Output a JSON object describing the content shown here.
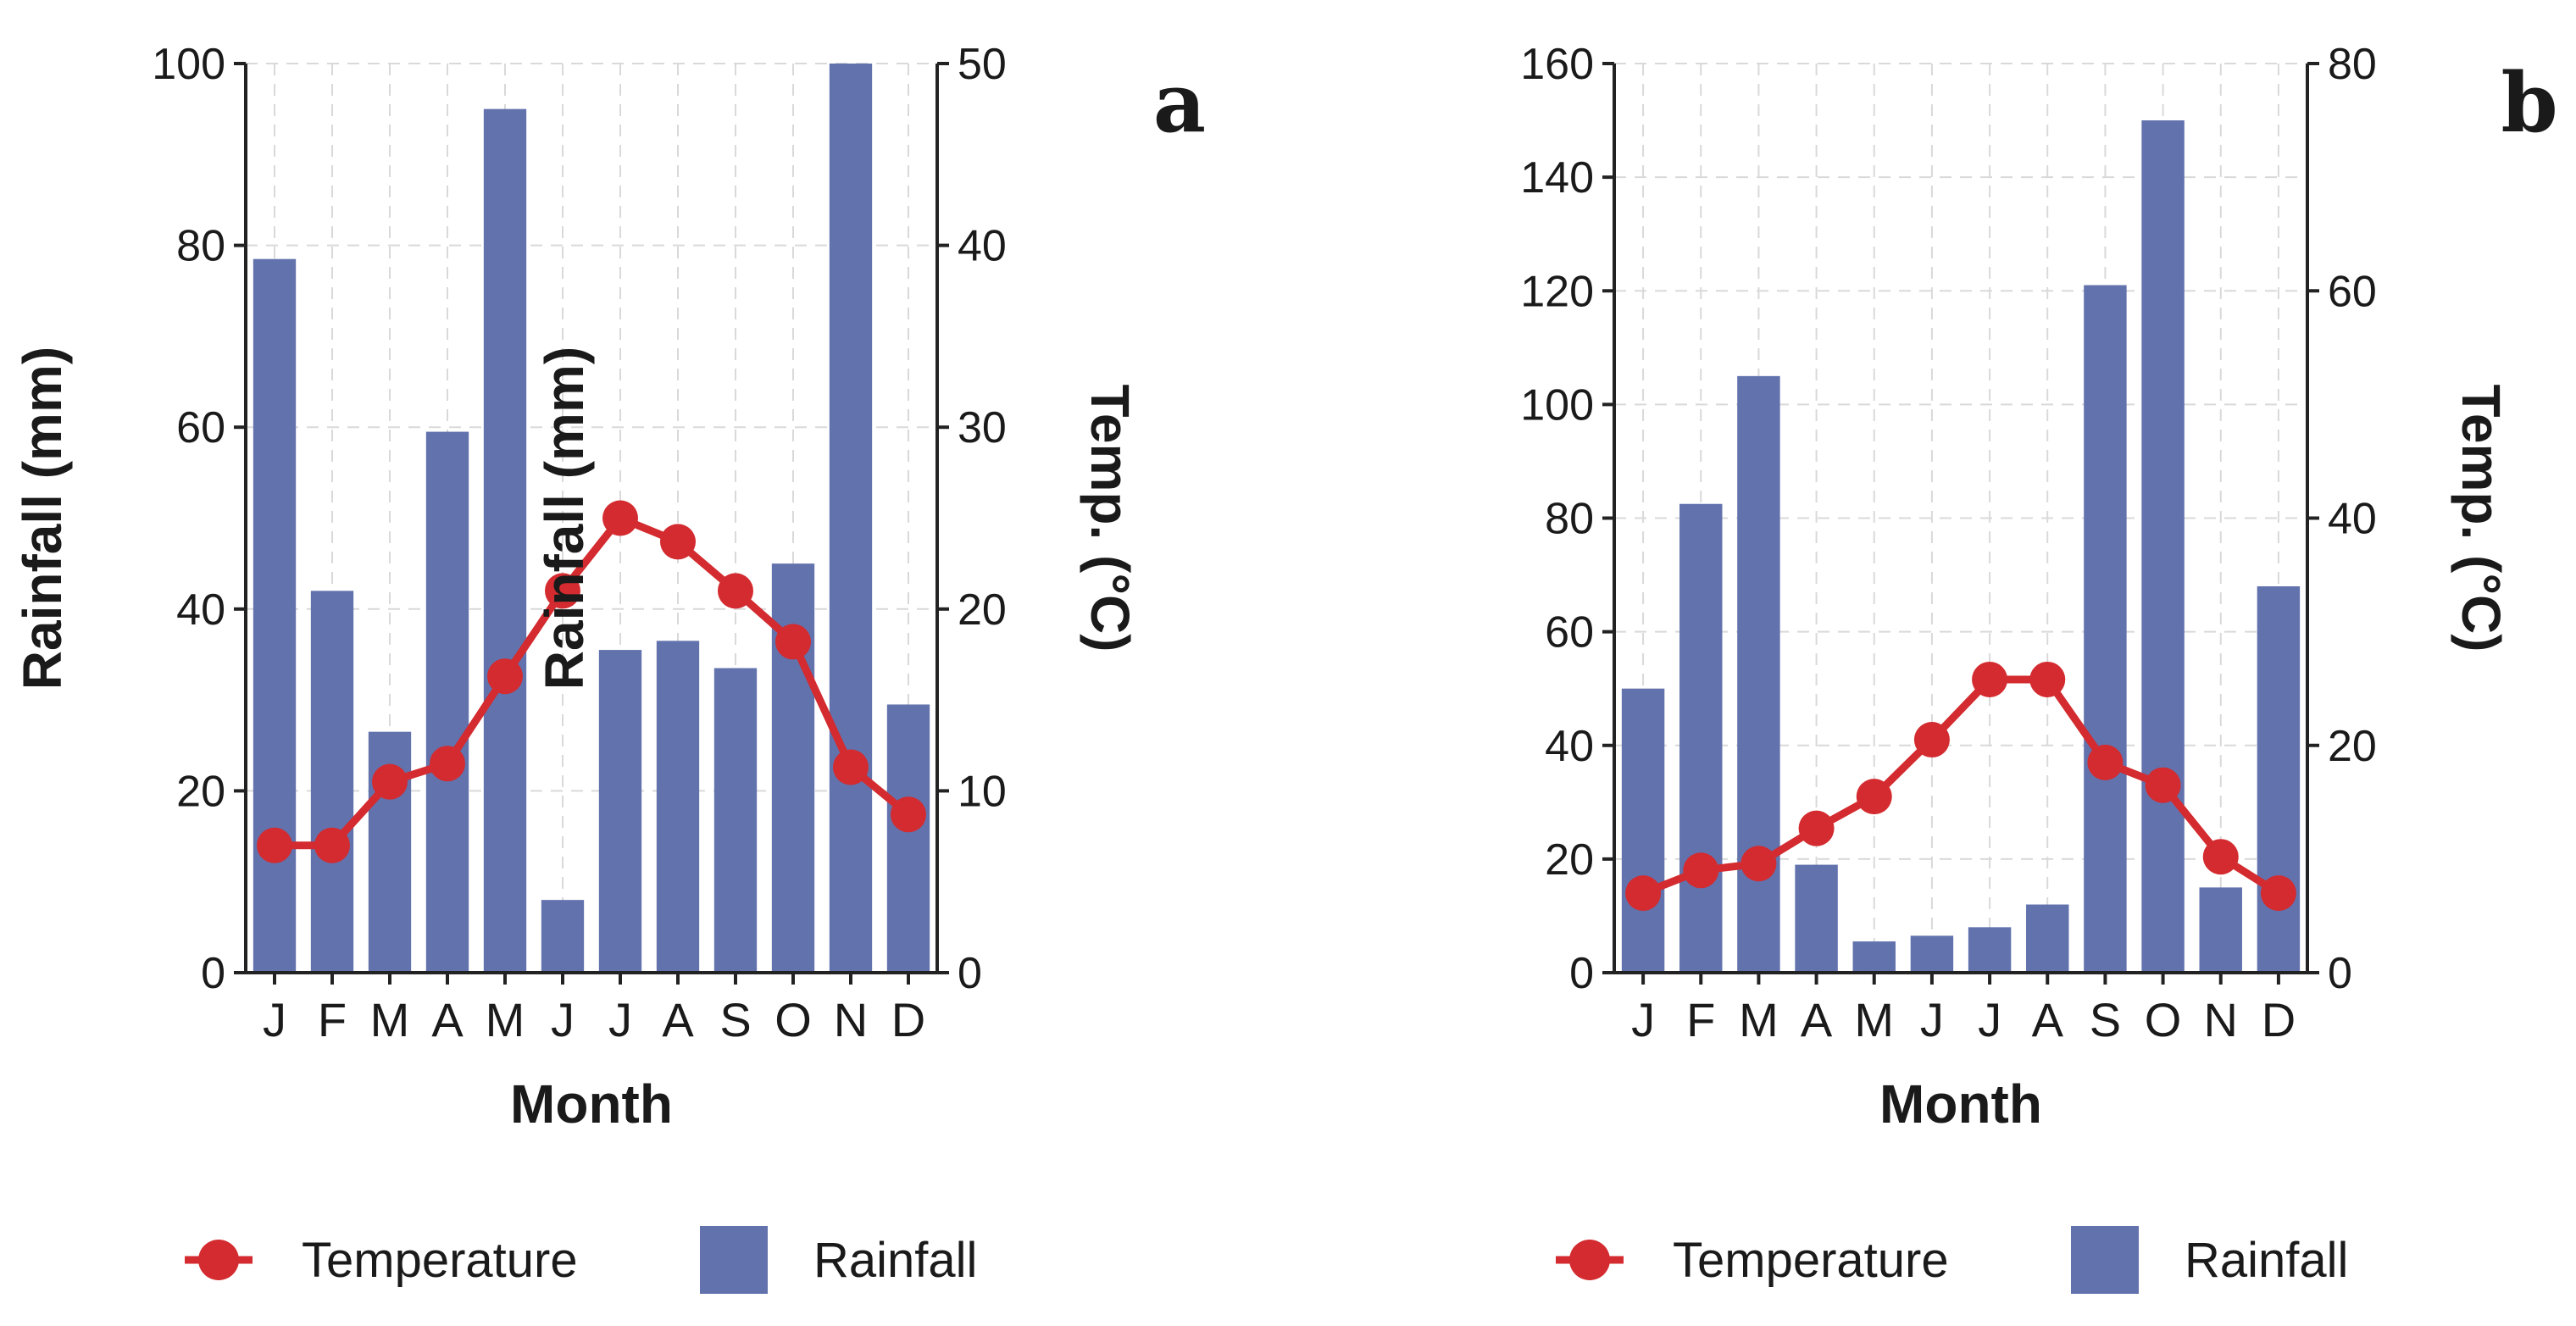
{
  "figure": {
    "panels": [
      "a",
      "b"
    ]
  },
  "colors": {
    "bar": "#6272ad",
    "line": "#d32b2f",
    "grid": "#d9d9d9",
    "axis": "#222222"
  },
  "chart_data": [
    {
      "type": "bar+line",
      "panel_label": "a",
      "categories": [
        "J",
        "F",
        "M",
        "A",
        "M",
        "J",
        "J",
        "A",
        "S",
        "O",
        "N",
        "D"
      ],
      "xlabel": "Month",
      "ylabel": "Rainfall (mm)",
      "y2label": "Temp. (°C)",
      "ylim": [
        0,
        100
      ],
      "y2lim": [
        0,
        50
      ],
      "yticks": [
        0,
        20,
        40,
        60,
        80,
        100
      ],
      "y2ticks": [
        0,
        10,
        20,
        30,
        40,
        50
      ],
      "grid": true,
      "series": [
        {
          "name": "Rainfall",
          "kind": "bar",
          "axis": "left",
          "values": [
            78.5,
            42,
            26.5,
            59.5,
            95,
            8,
            35.5,
            36.5,
            33.5,
            45,
            100,
            29.5
          ]
        },
        {
          "name": "Temperature",
          "kind": "line",
          "axis": "right",
          "values": [
            7,
            7,
            10.5,
            11.5,
            16.3,
            21,
            25,
            23.7,
            21,
            18.2,
            11.3,
            8.7
          ]
        }
      ],
      "legend": {
        "position": "bottom",
        "entries": [
          "Temperature",
          "Rainfall"
        ]
      }
    },
    {
      "type": "bar+line",
      "panel_label": "b",
      "categories": [
        "J",
        "F",
        "M",
        "A",
        "M",
        "J",
        "J",
        "A",
        "S",
        "O",
        "N",
        "D"
      ],
      "xlabel": "Month",
      "ylabel": "Rainfall (mm)",
      "y2label": "Temp. (°C)",
      "ylim": [
        0,
        160
      ],
      "y2lim": [
        0,
        80
      ],
      "yticks": [
        0,
        20,
        40,
        60,
        80,
        100,
        120,
        140,
        160
      ],
      "y2ticks": [
        0,
        20,
        40,
        60,
        80
      ],
      "grid": true,
      "series": [
        {
          "name": "Rainfall",
          "kind": "bar",
          "axis": "left",
          "values": [
            50,
            82.5,
            105,
            19,
            5.5,
            6.5,
            8,
            12,
            121,
            150,
            15,
            68
          ]
        },
        {
          "name": "Temperature",
          "kind": "line",
          "axis": "right",
          "values": [
            7,
            9,
            9.6,
            12.7,
            15.5,
            20.5,
            25.8,
            25.8,
            18.5,
            16.5,
            10.2,
            7
          ]
        }
      ],
      "legend": {
        "position": "bottom",
        "entries": [
          "Temperature",
          "Rainfall"
        ]
      }
    }
  ]
}
